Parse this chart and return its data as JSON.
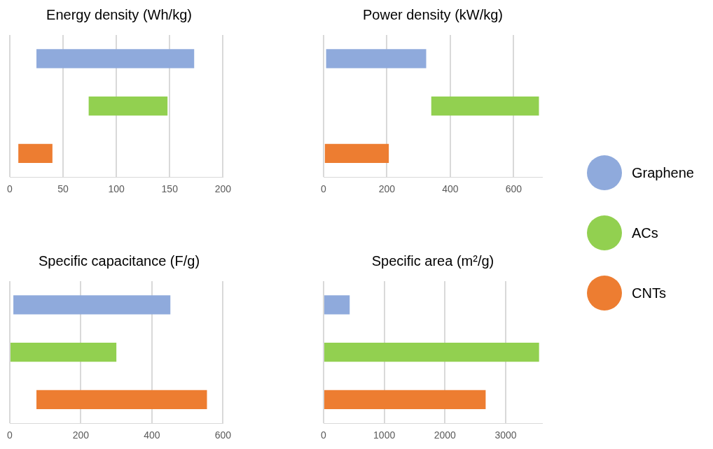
{
  "chart_data": [
    {
      "type": "bar",
      "orientation": "horizontal",
      "title": "Energy density (Wh/kg)",
      "categories": [
        null,
        null,
        null
      ],
      "xlim": [
        0,
        200
      ],
      "xticks": [
        0,
        50,
        100,
        150,
        200
      ],
      "grid": "x",
      "legend": "right",
      "series": [
        {
          "name": "Graphene",
          "color": "#8faadc",
          "values": [
            148,
            null,
            null
          ],
          "base": [
            25,
            null,
            null
          ]
        },
        {
          "name": "ACs",
          "color": "#92d050",
          "values": [
            null,
            74,
            null
          ],
          "base": [
            null,
            74,
            null
          ]
        },
        {
          "name": "CNTs",
          "color": "#ed7d31",
          "values": [
            null,
            null,
            32
          ],
          "base": [
            null,
            null,
            8
          ]
        }
      ]
    },
    {
      "type": "bar",
      "orientation": "horizontal",
      "title": "Power density (kW/kg)",
      "categories": [
        null,
        null,
        null
      ],
      "xlim": [
        0,
        690
      ],
      "xticks": [
        0,
        200,
        400,
        600
      ],
      "grid": "x",
      "series": [
        {
          "color": "#8faadc",
          "values": [
            316,
            null,
            null
          ],
          "base": [
            8,
            null,
            null
          ]
        },
        {
          "color": "#92d050",
          "values": [
            null,
            340,
            null
          ],
          "base": [
            null,
            340,
            null
          ]
        },
        {
          "color": "#ed7d31",
          "values": [
            null,
            null,
            202
          ],
          "base": [
            null,
            null,
            4
          ]
        }
      ]
    },
    {
      "type": "bar",
      "orientation": "horizontal",
      "title": "Specific capacitance (F/g)",
      "categories": [
        null,
        null,
        null
      ],
      "xlim": [
        0,
        600
      ],
      "xticks": [
        0,
        200,
        400,
        600
      ],
      "grid": "x",
      "series": [
        {
          "color": "#8faadc",
          "values": [
            442,
            null,
            null
          ],
          "base": [
            10,
            null,
            null
          ]
        },
        {
          "color": "#92d050",
          "values": [
            null,
            300,
            null
          ],
          "base": [
            null,
            0,
            null
          ]
        },
        {
          "color": "#ed7d31",
          "values": [
            null,
            null,
            480
          ],
          "base": [
            null,
            null,
            75
          ]
        }
      ]
    },
    {
      "type": "bar",
      "orientation": "horizontal",
      "title": "Specific area (m²/g)",
      "categories": [
        null,
        null,
        null
      ],
      "xlim": [
        0,
        3600
      ],
      "xticks": [
        0,
        1000,
        2000,
        3000
      ],
      "grid": "x",
      "series": [
        {
          "color": "#8faadc",
          "values": [
            430,
            null,
            null
          ],
          "base": [
            0,
            null,
            null
          ]
        },
        {
          "color": "#92d050",
          "values": [
            null,
            3550,
            null
          ],
          "base": [
            null,
            0,
            null
          ]
        },
        {
          "color": "#ed7d31",
          "values": [
            null,
            null,
            2670
          ],
          "base": [
            null,
            null,
            0
          ]
        }
      ]
    }
  ]
}
